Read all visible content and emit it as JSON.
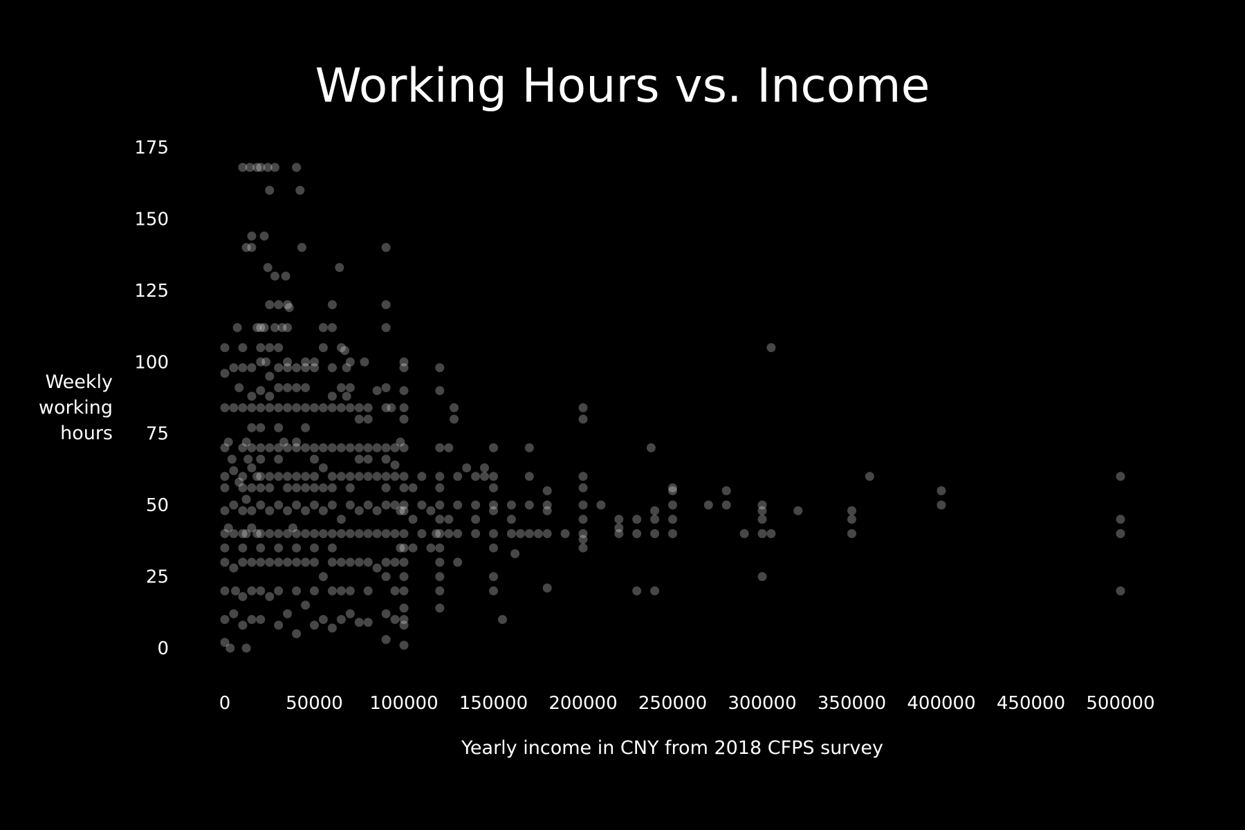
{
  "chart_data": {
    "type": "scatter",
    "title": "Working Hours vs. Income",
    "xlabel": "Yearly income in CNY from 2018 CFPS survey",
    "ylabel": [
      "Weekly",
      "working",
      "hours"
    ],
    "xlim": [
      0,
      500000
    ],
    "ylim": [
      0,
      175
    ],
    "xticks": [
      0,
      50000,
      100000,
      150000,
      200000,
      250000,
      300000,
      350000,
      400000,
      450000,
      500000
    ],
    "yticks": [
      0,
      25,
      50,
      75,
      100,
      125,
      150,
      175
    ],
    "grid": false,
    "background": "#000000",
    "point_color": "#ffffff",
    "point_opacity": 0.28,
    "points": [
      [
        0,
        70
      ],
      [
        0,
        84
      ],
      [
        0,
        60
      ],
      [
        0,
        56
      ],
      [
        0,
        48
      ],
      [
        0,
        40
      ],
      [
        0,
        35
      ],
      [
        0,
        30
      ],
      [
        0,
        20
      ],
      [
        0,
        10
      ],
      [
        0,
        2
      ],
      [
        0,
        105
      ],
      [
        0,
        96
      ],
      [
        2000,
        42
      ],
      [
        2000,
        72
      ],
      [
        3000,
        0
      ],
      [
        4000,
        66
      ],
      [
        5000,
        40
      ],
      [
        5000,
        84
      ],
      [
        5000,
        98
      ],
      [
        5000,
        62
      ],
      [
        5000,
        50
      ],
      [
        5000,
        28
      ],
      [
        5000,
        12
      ],
      [
        6000,
        20
      ],
      [
        7000,
        112
      ],
      [
        8000,
        91
      ],
      [
        8000,
        58
      ],
      [
        10000,
        70
      ],
      [
        10000,
        84
      ],
      [
        10000,
        48
      ],
      [
        10000,
        40
      ],
      [
        10000,
        60
      ],
      [
        10000,
        168
      ],
      [
        10000,
        105
      ],
      [
        10000,
        98
      ],
      [
        10000,
        30
      ],
      [
        10000,
        18
      ],
      [
        10000,
        8
      ],
      [
        10000,
        56
      ],
      [
        10000,
        35
      ],
      [
        12000,
        72
      ],
      [
        12000,
        52
      ],
      [
        12000,
        40
      ],
      [
        12000,
        0
      ],
      [
        12000,
        140
      ],
      [
        13000,
        66
      ],
      [
        14000,
        168
      ],
      [
        15000,
        70
      ],
      [
        15000,
        84
      ],
      [
        15000,
        56
      ],
      [
        15000,
        48
      ],
      [
        15000,
        42
      ],
      [
        15000,
        30
      ],
      [
        15000,
        20
      ],
      [
        15000,
        144
      ],
      [
        15000,
        140
      ],
      [
        15000,
        98
      ],
      [
        15000,
        10
      ],
      [
        15000,
        77
      ],
      [
        15000,
        63
      ],
      [
        15000,
        88
      ],
      [
        18000,
        112
      ],
      [
        18000,
        168
      ],
      [
        18000,
        60
      ],
      [
        18000,
        40
      ],
      [
        20000,
        70
      ],
      [
        20000,
        84
      ],
      [
        20000,
        60
      ],
      [
        20000,
        50
      ],
      [
        20000,
        40
      ],
      [
        20000,
        105
      ],
      [
        20000,
        100
      ],
      [
        20000,
        168
      ],
      [
        20000,
        30
      ],
      [
        20000,
        20
      ],
      [
        20000,
        10
      ],
      [
        20000,
        56
      ],
      [
        20000,
        90
      ],
      [
        20000,
        112
      ],
      [
        20000,
        35
      ],
      [
        20000,
        66
      ],
      [
        20000,
        77
      ],
      [
        22000,
        144
      ],
      [
        22000,
        112
      ],
      [
        23000,
        100
      ],
      [
        24000,
        133
      ],
      [
        24000,
        168
      ],
      [
        25000,
        70
      ],
      [
        25000,
        84
      ],
      [
        25000,
        60
      ],
      [
        25000,
        48
      ],
      [
        25000,
        40
      ],
      [
        25000,
        160
      ],
      [
        25000,
        120
      ],
      [
        25000,
        105
      ],
      [
        25000,
        88
      ],
      [
        25000,
        30
      ],
      [
        25000,
        18
      ],
      [
        25000,
        56
      ],
      [
        25000,
        95
      ],
      [
        28000,
        112
      ],
      [
        28000,
        168
      ],
      [
        28000,
        130
      ],
      [
        30000,
        70
      ],
      [
        30000,
        84
      ],
      [
        30000,
        60
      ],
      [
        30000,
        50
      ],
      [
        30000,
        40
      ],
      [
        30000,
        105
      ],
      [
        30000,
        98
      ],
      [
        30000,
        120
      ],
      [
        30000,
        30
      ],
      [
        30000,
        20
      ],
      [
        30000,
        8
      ],
      [
        30000,
        66
      ],
      [
        30000,
        35
      ],
      [
        30000,
        77
      ],
      [
        30000,
        91
      ],
      [
        32000,
        112
      ],
      [
        33000,
        72
      ],
      [
        34000,
        130
      ],
      [
        35000,
        70
      ],
      [
        35000,
        84
      ],
      [
        35000,
        60
      ],
      [
        35000,
        48
      ],
      [
        35000,
        40
      ],
      [
        35000,
        120
      ],
      [
        35000,
        98
      ],
      [
        35000,
        30
      ],
      [
        35000,
        12
      ],
      [
        35000,
        56
      ],
      [
        35000,
        100
      ],
      [
        35000,
        112
      ],
      [
        35000,
        91
      ],
      [
        36000,
        119
      ],
      [
        38000,
        42
      ],
      [
        40000,
        70
      ],
      [
        40000,
        84
      ],
      [
        40000,
        60
      ],
      [
        40000,
        50
      ],
      [
        40000,
        40
      ],
      [
        40000,
        98
      ],
      [
        40000,
        168
      ],
      [
        40000,
        30
      ],
      [
        40000,
        20
      ],
      [
        40000,
        5
      ],
      [
        40000,
        91
      ],
      [
        40000,
        72
      ],
      [
        40000,
        56
      ],
      [
        40000,
        35
      ],
      [
        42000,
        160
      ],
      [
        43000,
        140
      ],
      [
        45000,
        70
      ],
      [
        45000,
        84
      ],
      [
        45000,
        60
      ],
      [
        45000,
        48
      ],
      [
        45000,
        40
      ],
      [
        45000,
        98
      ],
      [
        45000,
        91
      ],
      [
        45000,
        30
      ],
      [
        45000,
        15
      ],
      [
        45000,
        56
      ],
      [
        45000,
        100
      ],
      [
        45000,
        77
      ],
      [
        50000,
        70
      ],
      [
        50000,
        84
      ],
      [
        50000,
        60
      ],
      [
        50000,
        50
      ],
      [
        50000,
        40
      ],
      [
        50000,
        30
      ],
      [
        50000,
        20
      ],
      [
        50000,
        8
      ],
      [
        50000,
        100
      ],
      [
        50000,
        98
      ],
      [
        50000,
        56
      ],
      [
        50000,
        35
      ],
      [
        50000,
        66
      ],
      [
        55000,
        112
      ],
      [
        55000,
        105
      ],
      [
        55000,
        70
      ],
      [
        55000,
        84
      ],
      [
        55000,
        56
      ],
      [
        55000,
        40
      ],
      [
        55000,
        25
      ],
      [
        55000,
        10
      ],
      [
        55000,
        48
      ],
      [
        55000,
        63
      ],
      [
        60000,
        70
      ],
      [
        60000,
        84
      ],
      [
        60000,
        60
      ],
      [
        60000,
        50
      ],
      [
        60000,
        40
      ],
      [
        60000,
        30
      ],
      [
        60000,
        20
      ],
      [
        60000,
        7
      ],
      [
        60000,
        120
      ],
      [
        60000,
        112
      ],
      [
        60000,
        98
      ],
      [
        60000,
        88
      ],
      [
        60000,
        56
      ],
      [
        60000,
        35
      ],
      [
        64000,
        133
      ],
      [
        65000,
        105
      ],
      [
        65000,
        70
      ],
      [
        65000,
        84
      ],
      [
        65000,
        60
      ],
      [
        65000,
        45
      ],
      [
        65000,
        40
      ],
      [
        65000,
        30
      ],
      [
        65000,
        20
      ],
      [
        65000,
        10
      ],
      [
        65000,
        91
      ],
      [
        67000,
        104
      ],
      [
        68000,
        98
      ],
      [
        68000,
        88
      ],
      [
        70000,
        70
      ],
      [
        70000,
        84
      ],
      [
        70000,
        60
      ],
      [
        70000,
        50
      ],
      [
        70000,
        40
      ],
      [
        70000,
        30
      ],
      [
        70000,
        20
      ],
      [
        70000,
        91
      ],
      [
        70000,
        100
      ],
      [
        70000,
        56
      ],
      [
        70000,
        12
      ],
      [
        75000,
        70
      ],
      [
        75000,
        84
      ],
      [
        75000,
        60
      ],
      [
        75000,
        48
      ],
      [
        75000,
        40
      ],
      [
        75000,
        30
      ],
      [
        75000,
        9
      ],
      [
        75000,
        80
      ],
      [
        75000,
        66
      ],
      [
        78000,
        100
      ],
      [
        80000,
        70
      ],
      [
        80000,
        84
      ],
      [
        80000,
        60
      ],
      [
        80000,
        50
      ],
      [
        80000,
        40
      ],
      [
        80000,
        30
      ],
      [
        80000,
        9
      ],
      [
        80000,
        80
      ],
      [
        80000,
        20
      ],
      [
        80000,
        66
      ],
      [
        85000,
        90
      ],
      [
        85000,
        60
      ],
      [
        85000,
        40
      ],
      [
        85000,
        48
      ],
      [
        85000,
        70
      ],
      [
        85000,
        28
      ],
      [
        90000,
        140
      ],
      [
        90000,
        120
      ],
      [
        90000,
        112
      ],
      [
        90000,
        91
      ],
      [
        90000,
        84
      ],
      [
        90000,
        70
      ],
      [
        90000,
        60
      ],
      [
        90000,
        50
      ],
      [
        90000,
        40
      ],
      [
        90000,
        30
      ],
      [
        90000,
        12
      ],
      [
        90000,
        3
      ],
      [
        90000,
        66
      ],
      [
        90000,
        56
      ],
      [
        90000,
        25
      ],
      [
        93000,
        84
      ],
      [
        95000,
        70
      ],
      [
        95000,
        60
      ],
      [
        95000,
        50
      ],
      [
        95000,
        40
      ],
      [
        95000,
        30
      ],
      [
        95000,
        20
      ],
      [
        95000,
        10
      ],
      [
        95000,
        64
      ],
      [
        98000,
        72
      ],
      [
        98000,
        48
      ],
      [
        98000,
        35
      ],
      [
        100000,
        100
      ],
      [
        100000,
        98
      ],
      [
        100000,
        90
      ],
      [
        100000,
        84
      ],
      [
        100000,
        80
      ],
      [
        100000,
        70
      ],
      [
        100000,
        60
      ],
      [
        100000,
        56
      ],
      [
        100000,
        50
      ],
      [
        100000,
        48
      ],
      [
        100000,
        40
      ],
      [
        100000,
        35
      ],
      [
        100000,
        30
      ],
      [
        100000,
        25
      ],
      [
        100000,
        20
      ],
      [
        100000,
        14
      ],
      [
        100000,
        10
      ],
      [
        100000,
        8
      ],
      [
        100000,
        1
      ],
      [
        105000,
        56
      ],
      [
        105000,
        45
      ],
      [
        105000,
        35
      ],
      [
        110000,
        60
      ],
      [
        110000,
        50
      ],
      [
        110000,
        40
      ],
      [
        115000,
        48
      ],
      [
        115000,
        35
      ],
      [
        118000,
        40
      ],
      [
        120000,
        98
      ],
      [
        120000,
        90
      ],
      [
        120000,
        70
      ],
      [
        120000,
        60
      ],
      [
        120000,
        56
      ],
      [
        120000,
        50
      ],
      [
        120000,
        45
      ],
      [
        120000,
        40
      ],
      [
        120000,
        35
      ],
      [
        120000,
        30
      ],
      [
        120000,
        25
      ],
      [
        120000,
        20
      ],
      [
        120000,
        14
      ],
      [
        125000,
        70
      ],
      [
        125000,
        45
      ],
      [
        125000,
        40
      ],
      [
        128000,
        84
      ],
      [
        128000,
        80
      ],
      [
        130000,
        60
      ],
      [
        130000,
        50
      ],
      [
        130000,
        40
      ],
      [
        130000,
        30
      ],
      [
        135000,
        63
      ],
      [
        140000,
        60
      ],
      [
        140000,
        50
      ],
      [
        140000,
        40
      ],
      [
        140000,
        45
      ],
      [
        145000,
        60
      ],
      [
        145000,
        63
      ],
      [
        150000,
        70
      ],
      [
        150000,
        60
      ],
      [
        150000,
        56
      ],
      [
        150000,
        50
      ],
      [
        150000,
        48
      ],
      [
        150000,
        40
      ],
      [
        150000,
        35
      ],
      [
        150000,
        25
      ],
      [
        150000,
        20
      ],
      [
        155000,
        10
      ],
      [
        160000,
        50
      ],
      [
        160000,
        40
      ],
      [
        160000,
        45
      ],
      [
        162000,
        33
      ],
      [
        165000,
        40
      ],
      [
        170000,
        70
      ],
      [
        170000,
        60
      ],
      [
        170000,
        50
      ],
      [
        170000,
        40
      ],
      [
        175000,
        40
      ],
      [
        180000,
        55
      ],
      [
        180000,
        50
      ],
      [
        180000,
        48
      ],
      [
        180000,
        40
      ],
      [
        180000,
        21
      ],
      [
        190000,
        40
      ],
      [
        200000,
        84
      ],
      [
        200000,
        80
      ],
      [
        200000,
        60
      ],
      [
        200000,
        56
      ],
      [
        200000,
        50
      ],
      [
        200000,
        45
      ],
      [
        200000,
        40
      ],
      [
        200000,
        38
      ],
      [
        200000,
        35
      ],
      [
        210000,
        50
      ],
      [
        220000,
        45
      ],
      [
        220000,
        42
      ],
      [
        220000,
        40
      ],
      [
        230000,
        45
      ],
      [
        230000,
        40
      ],
      [
        230000,
        20
      ],
      [
        238000,
        70
      ],
      [
        240000,
        48
      ],
      [
        240000,
        45
      ],
      [
        240000,
        40
      ],
      [
        240000,
        20
      ],
      [
        250000,
        56
      ],
      [
        250000,
        55
      ],
      [
        250000,
        50
      ],
      [
        250000,
        45
      ],
      [
        250000,
        40
      ],
      [
        270000,
        50
      ],
      [
        280000,
        55
      ],
      [
        280000,
        50
      ],
      [
        290000,
        40
      ],
      [
        300000,
        50
      ],
      [
        300000,
        48
      ],
      [
        300000,
        45
      ],
      [
        300000,
        40
      ],
      [
        300000,
        25
      ],
      [
        305000,
        105
      ],
      [
        305000,
        40
      ],
      [
        320000,
        48
      ],
      [
        350000,
        48
      ],
      [
        350000,
        45
      ],
      [
        350000,
        40
      ],
      [
        360000,
        60
      ],
      [
        400000,
        55
      ],
      [
        400000,
        50
      ],
      [
        500000,
        60
      ],
      [
        500000,
        45
      ],
      [
        500000,
        40
      ],
      [
        500000,
        20
      ]
    ]
  }
}
